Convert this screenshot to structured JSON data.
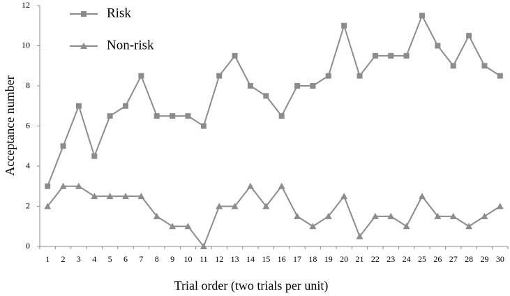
{
  "chart_data": {
    "type": "line",
    "xlabel": "Trial order (two trials per unit)",
    "ylabel": "Acceptance number",
    "categories": [
      "1",
      "2",
      "3",
      "4",
      "5",
      "6",
      "7",
      "8",
      "9",
      "10",
      "11",
      "12",
      "13",
      "14",
      "15",
      "16",
      "17",
      "18",
      "19",
      "20",
      "21",
      "22",
      "23",
      "24",
      "25",
      "26",
      "27",
      "28",
      "29",
      "30"
    ],
    "series": [
      {
        "name": "Risk",
        "color": "#8c8c8c",
        "marker": "square",
        "values": [
          3,
          5,
          7,
          4.5,
          6.5,
          7,
          8.5,
          6.5,
          6.5,
          6.5,
          6,
          8.5,
          9.5,
          8,
          7.5,
          6.5,
          8,
          8,
          8.5,
          11,
          8.5,
          9.5,
          9.5,
          9.5,
          11.5,
          10,
          9,
          10.5,
          9,
          8.5
        ]
      },
      {
        "name": "Non-risk",
        "color": "#8c8c8c",
        "marker": "triangle",
        "values": [
          2,
          3,
          3,
          2.5,
          2.5,
          2.5,
          2.5,
          1.5,
          1,
          1,
          0,
          2,
          2,
          3,
          2,
          3,
          1.5,
          1,
          1.5,
          2.5,
          0.5,
          1.5,
          1.5,
          1,
          2.5,
          1.5,
          1.5,
          1,
          1.5,
          2
        ]
      }
    ],
    "ylim": [
      0,
      12
    ],
    "yticks": [
      0,
      2,
      4,
      6,
      8,
      10,
      12
    ],
    "grid": false,
    "legend": "top-left"
  }
}
